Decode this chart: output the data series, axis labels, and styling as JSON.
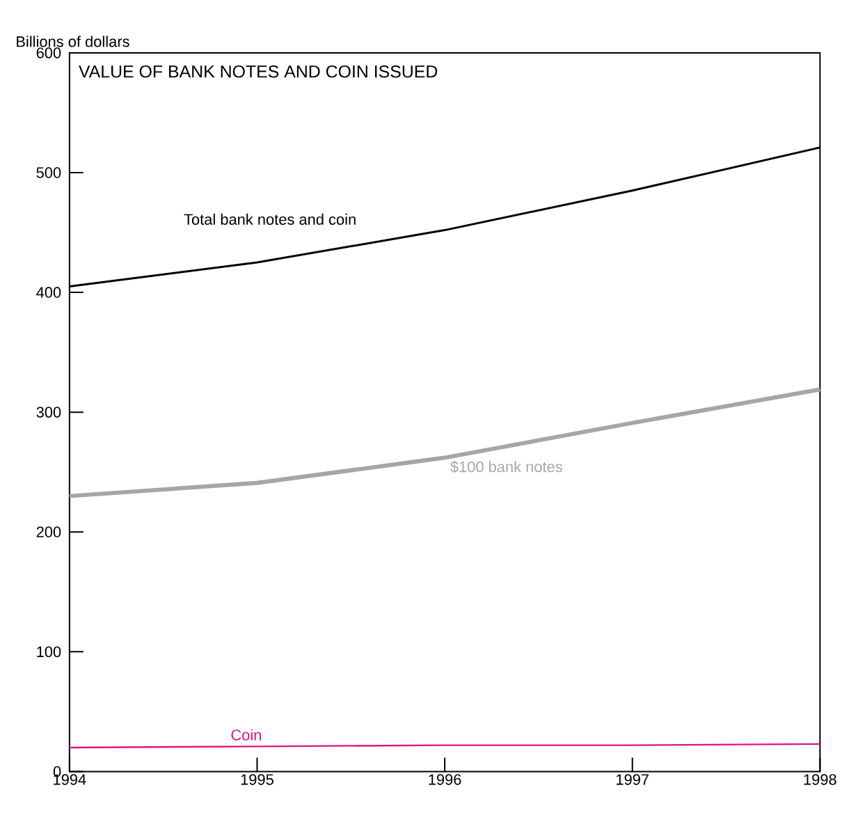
{
  "chart_data": {
    "type": "line",
    "title": "VALUE OF BANK NOTES AND COIN ISSUED",
    "ylabel": "Billions of dollars",
    "x": [
      1994,
      1995,
      1996,
      1997,
      1998
    ],
    "series": [
      {
        "name": "Total bank notes and coin",
        "color": "#000000",
        "values": [
          405,
          425,
          452,
          485,
          521
        ]
      },
      {
        "name": "$100 bank notes",
        "color": "#a6a6a6",
        "values": [
          230,
          241,
          262,
          291,
          319
        ]
      },
      {
        "name": "Coin",
        "color": "#e0157f",
        "values": [
          20,
          21,
          22,
          22,
          23
        ]
      }
    ],
    "xlim": [
      1994,
      1998
    ],
    "ylim": [
      0,
      600
    ],
    "xticks": [
      1994,
      1995,
      1996,
      1997,
      1998
    ],
    "yticks": [
      0,
      100,
      200,
      300,
      400,
      500,
      600
    ],
    "grid": false,
    "marker": "none",
    "line_style": "solid"
  }
}
